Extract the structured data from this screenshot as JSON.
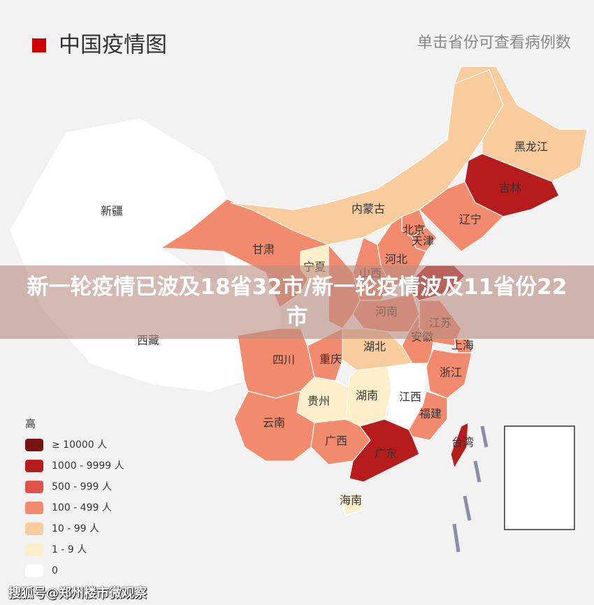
{
  "header": {
    "title": "中国疫情图",
    "hint": "单击省份可查看病例数"
  },
  "banner": "新一轮疫情已波及18省32市/新一轮疫情波及11省份22市",
  "legend": {
    "title": "高",
    "items": [
      {
        "label": "≥ 10000 人",
        "color": "#7a1212"
      },
      {
        "label": "1000 - 9999 人",
        "color": "#b71c1c"
      },
      {
        "label": "500 - 999 人",
        "color": "#e05248"
      },
      {
        "label": "100 - 499 人",
        "color": "#f28b6e"
      },
      {
        "label": "10 - 99 人",
        "color": "#f8cc9c"
      },
      {
        "label": "1 - 9 人",
        "color": "#fdefca"
      },
      {
        "label": "0",
        "color": "#ffffff"
      }
    ]
  },
  "provinces": [
    {
      "name": "新疆",
      "level": 6
    },
    {
      "name": "西藏",
      "level": 6
    },
    {
      "name": "甘肃",
      "level": 3
    },
    {
      "name": "内蒙古",
      "level": 4
    },
    {
      "name": "黑龙江",
      "level": 4
    },
    {
      "name": "吉林",
      "level": 1
    },
    {
      "name": "辽宁",
      "level": 3
    },
    {
      "name": "北京",
      "level": 3
    },
    {
      "name": "天津",
      "level": 3
    },
    {
      "name": "河北",
      "level": 3
    },
    {
      "name": "宁夏",
      "level": 5
    },
    {
      "name": "山西",
      "level": 3
    },
    {
      "name": "河南",
      "level": 3
    },
    {
      "name": "江苏",
      "level": 3
    },
    {
      "name": "安徽",
      "level": 3
    },
    {
      "name": "上海",
      "level": 3
    },
    {
      "name": "湖北",
      "level": 4
    },
    {
      "name": "重庆",
      "level": 3
    },
    {
      "name": "四川",
      "level": 3
    },
    {
      "name": "贵州",
      "level": 5
    },
    {
      "name": "湖南",
      "level": 5
    },
    {
      "name": "江西",
      "level": 6
    },
    {
      "name": "浙江",
      "level": 3
    },
    {
      "name": "福建",
      "level": 3
    },
    {
      "name": "云南",
      "level": 3
    },
    {
      "name": "广西",
      "level": 3
    },
    {
      "name": "广东",
      "level": 1
    },
    {
      "name": "台湾",
      "level": 1
    },
    {
      "name": "海南",
      "level": 5
    }
  ],
  "watermark": "搜狐号@郑州楼市微观察"
}
